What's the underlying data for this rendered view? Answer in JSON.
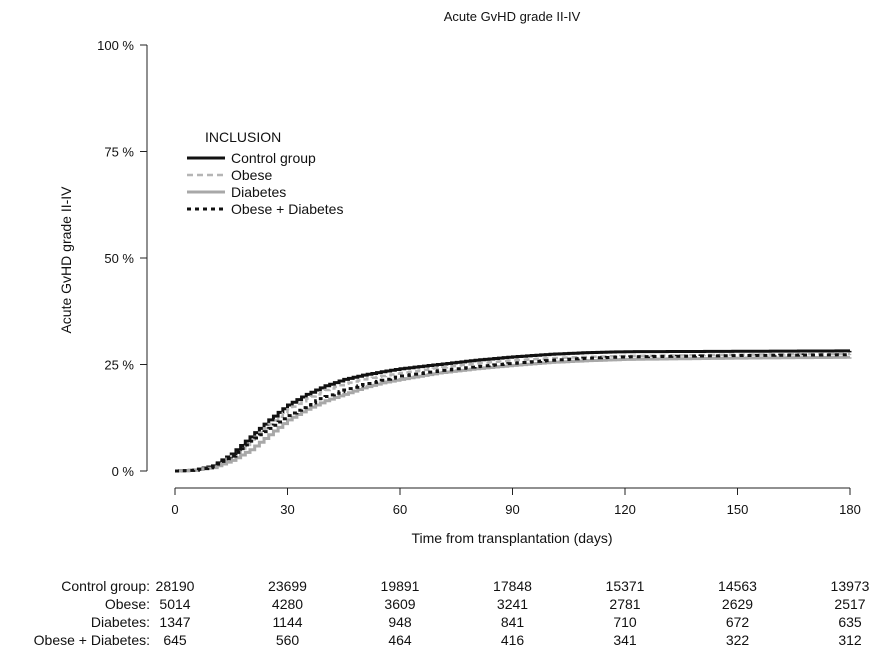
{
  "chart_data": {
    "type": "line",
    "title": "Acute GvHD grade II-IV",
    "xlabel": "Time from transplantation (days)",
    "ylabel": "Acute GvHD grade II-IV",
    "xlim": [
      0,
      180
    ],
    "ylim": [
      0,
      100
    ],
    "x_ticks": [
      0,
      30,
      60,
      90,
      120,
      150,
      180
    ],
    "y_ticks": [
      {
        "value": 0,
        "label": "0 %"
      },
      {
        "value": 25,
        "label": "25 %"
      },
      {
        "value": 50,
        "label": "50 %"
      },
      {
        "value": 75,
        "label": "75 %"
      },
      {
        "value": 100,
        "label": "100 %"
      }
    ],
    "grid": false,
    "legend": {
      "title": "INCLUSION",
      "position": "top-left"
    },
    "series": [
      {
        "name": "Control group",
        "color": "#111111",
        "dash": "solid",
        "width": 3,
        "x": [
          0,
          5,
          10,
          15,
          20,
          25,
          30,
          35,
          40,
          45,
          50,
          55,
          60,
          70,
          80,
          90,
          100,
          110,
          120,
          150,
          180
        ],
        "y": [
          0,
          0.2,
          1.2,
          4,
          8,
          12,
          15.5,
          18,
          20,
          21.5,
          22.5,
          23.3,
          24,
          25,
          26,
          26.8,
          27.4,
          27.8,
          28,
          28.1,
          28.2
        ]
      },
      {
        "name": "Obese",
        "color": "#b5b5b5",
        "dash": "6,4",
        "width": 2.5,
        "x": [
          0,
          5,
          10,
          15,
          20,
          25,
          30,
          35,
          40,
          45,
          50,
          55,
          60,
          70,
          80,
          90,
          100,
          110,
          120,
          150,
          180
        ],
        "y": [
          0,
          0.2,
          1,
          3.5,
          7,
          11,
          14.5,
          17,
          19,
          20.5,
          21.5,
          22.3,
          23,
          24.2,
          25.3,
          26,
          26.5,
          26.8,
          27,
          27.3,
          27.5
        ]
      },
      {
        "name": "Diabetes",
        "color": "#a8a8a8",
        "dash": "solid",
        "width": 3,
        "x": [
          0,
          5,
          10,
          15,
          20,
          25,
          30,
          35,
          40,
          45,
          50,
          55,
          60,
          70,
          80,
          90,
          100,
          110,
          120,
          150,
          180
        ],
        "y": [
          0,
          0.2,
          0.8,
          2.5,
          5,
          8.5,
          12,
          14.5,
          16.5,
          18,
          19.5,
          20.7,
          21.5,
          23,
          24,
          24.8,
          25.5,
          25.9,
          26.2,
          26.5,
          26.7
        ]
      },
      {
        "name": "Obese + Diabetes",
        "color": "#111111",
        "dash": "4,4",
        "width": 3,
        "x": [
          0,
          5,
          10,
          15,
          20,
          25,
          30,
          35,
          40,
          45,
          50,
          55,
          60,
          70,
          80,
          90,
          100,
          110,
          120,
          150,
          180
        ],
        "y": [
          0,
          0.2,
          1,
          3.5,
          7,
          10,
          13,
          15.5,
          17.5,
          19,
          20.3,
          21.3,
          22.3,
          23.5,
          24.5,
          25.3,
          26,
          26.5,
          26.8,
          27.1,
          27.3
        ]
      }
    ],
    "risk_table": {
      "times": [
        0,
        30,
        60,
        90,
        120,
        150,
        180
      ],
      "rows": [
        {
          "label": "Control group:",
          "counts": [
            "28190",
            "23699",
            "19891",
            "17848",
            "15371",
            "14563",
            "13973"
          ]
        },
        {
          "label": "Obese:",
          "counts": [
            "5014",
            "4280",
            "3609",
            "3241",
            "2781",
            "2629",
            "2517"
          ]
        },
        {
          "label": "Diabetes:",
          "counts": [
            "1347",
            "1144",
            "948",
            "841",
            "710",
            "672",
            "635"
          ]
        },
        {
          "label": "Obese + Diabetes:",
          "counts": [
            "645",
            "560",
            "464",
            "416",
            "341",
            "322",
            "312"
          ]
        }
      ]
    }
  }
}
